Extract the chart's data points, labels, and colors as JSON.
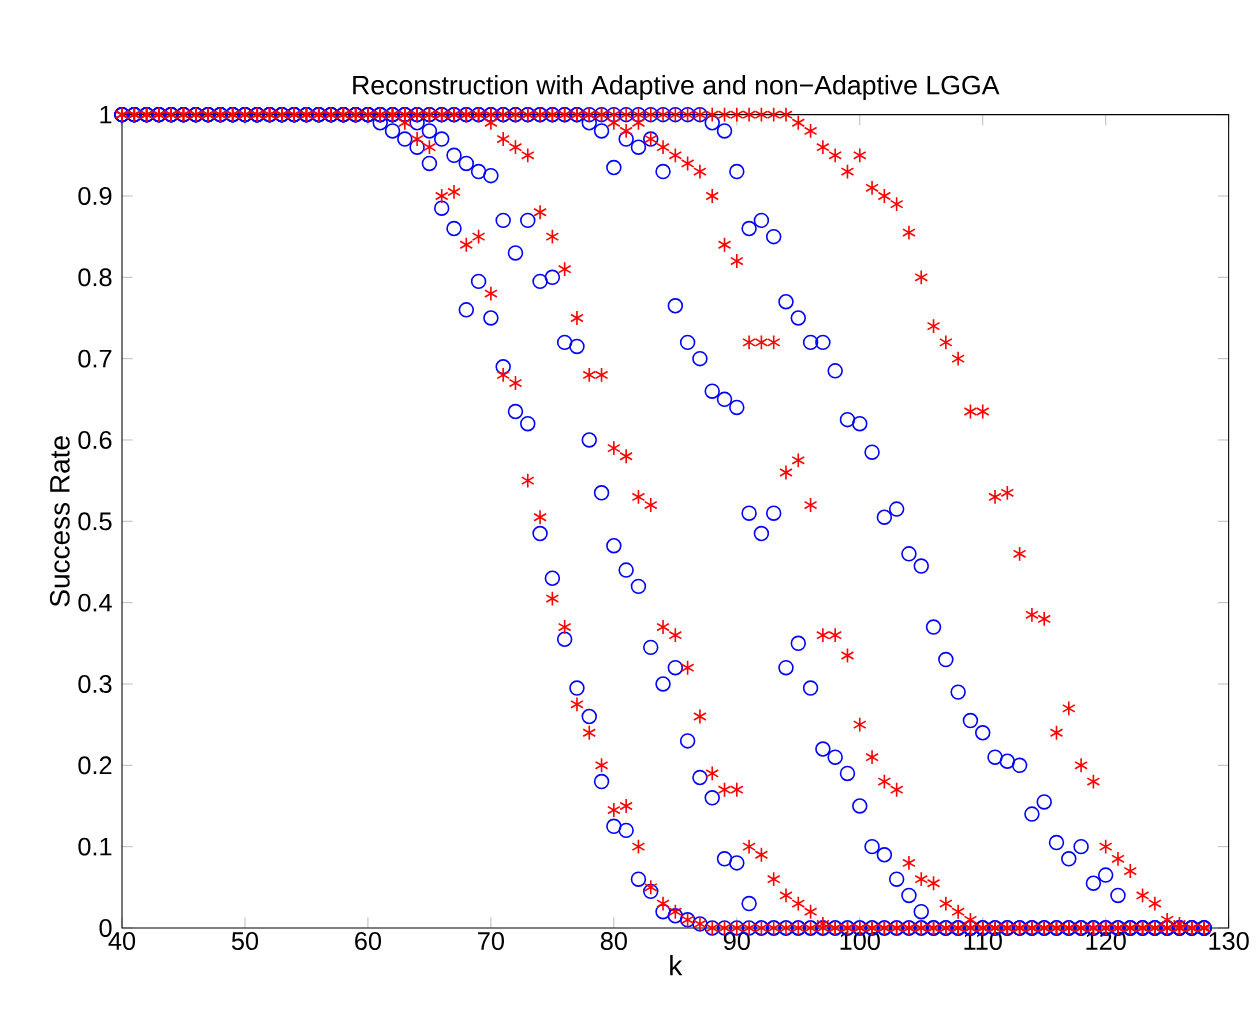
{
  "chart_data": {
    "type": "scatter",
    "title": "Reconstruction with Adaptive and non−Adaptive LGGA",
    "xlabel": "k",
    "ylabel": "Success Rate",
    "x": [
      40,
      41,
      42,
      43,
      44,
      45,
      46,
      47,
      48,
      49,
      50,
      51,
      52,
      53,
      54,
      55,
      56,
      57,
      58,
      59,
      60,
      61,
      62,
      63,
      64,
      65,
      66,
      67,
      68,
      69,
      70,
      71,
      72,
      73,
      74,
      75,
      76,
      77,
      78,
      79,
      80,
      81,
      82,
      83,
      84,
      85,
      86,
      87,
      88,
      89,
      90,
      91,
      92,
      93,
      94,
      95,
      96,
      97,
      98,
      99,
      100,
      101,
      102,
      103,
      104,
      105,
      106,
      107,
      108,
      109,
      110,
      111,
      112,
      113,
      114,
      115,
      116,
      117,
      118,
      119,
      120,
      121,
      122,
      123,
      124,
      125,
      126,
      127,
      128
    ],
    "series": [
      {
        "color": "#0000ff",
        "marker": "circle",
        "values": [
          1,
          1,
          1,
          1,
          1,
          1,
          1,
          1,
          1,
          1,
          1,
          1,
          1,
          1,
          1,
          1,
          1,
          1,
          1,
          1,
          1,
          0.99,
          0.98,
          0.97,
          0.96,
          0.94,
          0.885,
          0.86,
          0.76,
          0.795,
          0.75,
          0.69,
          0.635,
          0.62,
          0.485,
          0.43,
          0.355,
          0.295,
          0.26,
          0.18,
          0.125,
          0.12,
          0.06,
          0.045,
          0.02,
          0.015,
          0.01,
          0.005,
          0,
          0,
          0,
          0,
          0,
          0,
          0,
          0,
          0,
          0,
          0,
          0,
          0,
          0,
          0,
          0,
          0,
          0,
          0,
          0,
          0,
          0,
          0,
          0,
          0,
          0,
          0,
          0,
          0,
          0,
          0,
          0,
          0,
          0,
          0,
          0,
          0,
          0,
          0,
          0,
          0
        ]
      },
      {
        "color": "#0000ff",
        "marker": "circle",
        "values": [
          1,
          1,
          1,
          1,
          1,
          1,
          1,
          1,
          1,
          1,
          1,
          1,
          1,
          1,
          1,
          1,
          1,
          1,
          1,
          1,
          1,
          1,
          1,
          1,
          0.99,
          0.98,
          0.97,
          0.95,
          0.94,
          0.93,
          0.925,
          0.87,
          0.83,
          0.87,
          0.795,
          0.8,
          0.72,
          0.715,
          0.6,
          0.535,
          0.47,
          0.44,
          0.42,
          0.345,
          0.3,
          0.32,
          0.23,
          0.185,
          0.16,
          0.085,
          0.08,
          0.03,
          0,
          0,
          0,
          0,
          0,
          0,
          0,
          0,
          0,
          0,
          0,
          0,
          0,
          0,
          0,
          0,
          0,
          0,
          0,
          0,
          0,
          0,
          0,
          0,
          0,
          0,
          0,
          0,
          0,
          0,
          0,
          0,
          0,
          0,
          0,
          0,
          0
        ]
      },
      {
        "color": "#0000ff",
        "marker": "circle",
        "values": [
          1,
          1,
          1,
          1,
          1,
          1,
          1,
          1,
          1,
          1,
          1,
          1,
          1,
          1,
          1,
          1,
          1,
          1,
          1,
          1,
          1,
          1,
          1,
          1,
          1,
          1,
          1,
          1,
          1,
          1,
          1,
          1,
          1,
          1,
          1,
          1,
          1,
          1,
          0.99,
          0.98,
          0.935,
          0.97,
          0.96,
          0.97,
          0.93,
          0.765,
          0.72,
          0.7,
          0.66,
          0.65,
          0.64,
          0.51,
          0.485,
          0.51,
          0.32,
          0.35,
          0.295,
          0.22,
          0.21,
          0.19,
          0.15,
          0.1,
          0.09,
          0.06,
          0.04,
          0.02,
          0,
          0,
          0,
          0,
          0,
          0,
          0,
          0,
          0,
          0,
          0,
          0,
          0,
          0,
          0,
          0,
          0,
          0,
          0,
          0,
          0,
          0,
          0
        ]
      },
      {
        "color": "#0000ff",
        "marker": "circle",
        "values": [
          1,
          1,
          1,
          1,
          1,
          1,
          1,
          1,
          1,
          1,
          1,
          1,
          1,
          1,
          1,
          1,
          1,
          1,
          1,
          1,
          1,
          1,
          1,
          1,
          1,
          1,
          1,
          1,
          1,
          1,
          1,
          1,
          1,
          1,
          1,
          1,
          1,
          1,
          1,
          1,
          1,
          1,
          1,
          1,
          1,
          1,
          1,
          1,
          0.99,
          0.98,
          0.93,
          0.86,
          0.87,
          0.85,
          0.77,
          0.75,
          0.72,
          0.72,
          0.685,
          0.625,
          0.62,
          0.585,
          0.505,
          0.515,
          0.46,
          0.445,
          0.37,
          0.33,
          0.29,
          0.255,
          0.24,
          0.21,
          0.205,
          0.2,
          0.14,
          0.155,
          0.105,
          0.085,
          0.1,
          0.055,
          0.065,
          0.04,
          0,
          0,
          0,
          0,
          0,
          0,
          0
        ]
      },
      {
        "color": "#ff0000",
        "marker": "cross",
        "values": [
          1,
          1,
          1,
          1,
          1,
          1,
          1,
          1,
          1,
          1,
          1,
          1,
          1,
          1,
          1,
          1,
          1,
          1,
          1,
          1,
          1,
          1,
          1,
          0.99,
          0.97,
          0.96,
          0.9,
          0.905,
          0.84,
          0.85,
          0.78,
          0.68,
          0.67,
          0.55,
          0.505,
          0.405,
          0.37,
          0.275,
          0.24,
          0.2,
          0.145,
          0.15,
          0.1,
          0.05,
          0.03,
          0.02,
          0.01,
          0.005,
          0,
          0,
          0,
          0,
          0,
          0,
          0,
          0,
          0,
          0,
          0,
          0,
          0,
          0,
          0,
          0,
          0,
          0,
          0,
          0,
          0,
          0,
          0,
          0,
          0,
          0,
          0,
          0,
          0,
          0,
          0,
          0,
          0,
          0,
          0,
          0,
          0,
          0,
          0,
          0,
          0
        ]
      },
      {
        "color": "#ff0000",
        "marker": "cross",
        "values": [
          1,
          1,
          1,
          1,
          1,
          1,
          1,
          1,
          1,
          1,
          1,
          1,
          1,
          1,
          1,
          1,
          1,
          1,
          1,
          1,
          1,
          1,
          1,
          1,
          1,
          1,
          1,
          1,
          1,
          1,
          0.99,
          0.97,
          0.96,
          0.95,
          0.88,
          0.85,
          0.81,
          0.75,
          0.68,
          0.68,
          0.59,
          0.58,
          0.53,
          0.52,
          0.37,
          0.36,
          0.32,
          0.26,
          0.19,
          0.17,
          0.17,
          0.1,
          0.09,
          0.06,
          0.04,
          0.03,
          0.02,
          0.005,
          0,
          0,
          0,
          0,
          0,
          0,
          0,
          0,
          0,
          0,
          0,
          0,
          0,
          0,
          0,
          0,
          0,
          0,
          0,
          0,
          0,
          0,
          0,
          0,
          0,
          0,
          0,
          0,
          0,
          0,
          0
        ]
      },
      {
        "color": "#ff0000",
        "marker": "cross",
        "values": [
          1,
          1,
          1,
          1,
          1,
          1,
          1,
          1,
          1,
          1,
          1,
          1,
          1,
          1,
          1,
          1,
          1,
          1,
          1,
          1,
          1,
          1,
          1,
          1,
          1,
          1,
          1,
          1,
          1,
          1,
          1,
          1,
          1,
          1,
          1,
          1,
          1,
          1,
          1,
          1,
          0.99,
          0.98,
          0.99,
          0.97,
          0.96,
          0.95,
          0.94,
          0.93,
          0.9,
          0.84,
          0.82,
          0.72,
          0.72,
          0.72,
          0.56,
          0.575,
          0.52,
          0.36,
          0.36,
          0.335,
          0.25,
          0.21,
          0.18,
          0.17,
          0.08,
          0.06,
          0.055,
          0.03,
          0.02,
          0.01,
          0,
          0,
          0,
          0,
          0,
          0,
          0,
          0,
          0,
          0,
          0,
          0,
          0,
          0,
          0,
          0,
          0,
          0,
          0
        ]
      },
      {
        "color": "#ff0000",
        "marker": "cross",
        "values": [
          1,
          1,
          1,
          1,
          1,
          1,
          1,
          1,
          1,
          1,
          1,
          1,
          1,
          1,
          1,
          1,
          1,
          1,
          1,
          1,
          1,
          1,
          1,
          1,
          1,
          1,
          1,
          1,
          1,
          1,
          1,
          1,
          1,
          1,
          1,
          1,
          1,
          1,
          1,
          1,
          1,
          1,
          1,
          1,
          1,
          1,
          1,
          1,
          1,
          1,
          1,
          1,
          1,
          1,
          1,
          0.99,
          0.98,
          0.96,
          0.95,
          0.93,
          0.95,
          0.91,
          0.9,
          0.89,
          0.855,
          0.8,
          0.74,
          0.72,
          0.7,
          0.635,
          0.635,
          0.53,
          0.535,
          0.46,
          0.385,
          0.38,
          0.24,
          0.27,
          0.2,
          0.18,
          0.1,
          0.085,
          0.07,
          0.04,
          0.03,
          0.01,
          0.005,
          0,
          0
        ]
      }
    ],
    "xlim": [
      40,
      130
    ],
    "ylim": [
      0,
      1
    ],
    "xticks": [
      40,
      50,
      60,
      70,
      80,
      90,
      100,
      110,
      120,
      130
    ],
    "yticks": [
      0,
      0.1,
      0.2,
      0.3,
      0.4,
      0.5,
      0.6,
      0.7,
      0.8,
      0.9,
      1
    ],
    "grid": false
  }
}
